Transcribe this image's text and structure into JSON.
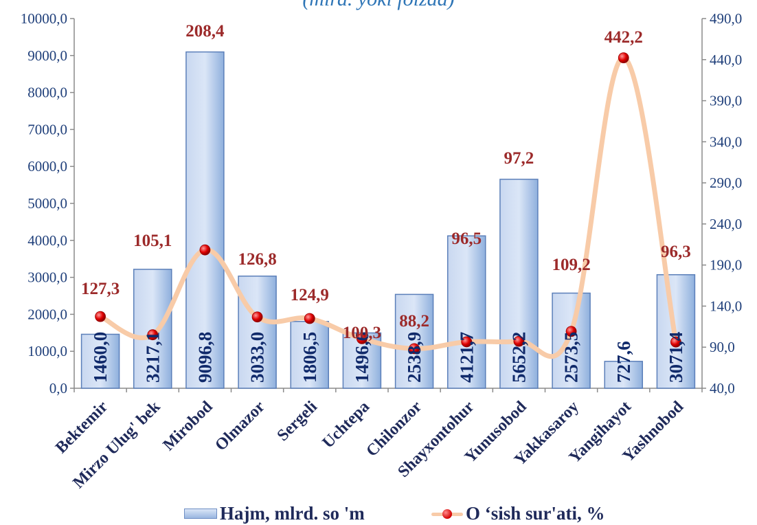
{
  "chart_data": {
    "type": "bar+line",
    "subtitle": "(mlrd. yoki foizda)",
    "categories": [
      "Bektemir",
      "Mirzo Ulug' bek",
      "Mirobod",
      "Olmazor",
      "Sergeli",
      "Uchtepa",
      "Chilonzor",
      "Shayxontohur",
      "Yunusobod",
      "Yakkasaroy",
      "Yangihayot",
      "Yashnobod"
    ],
    "series": [
      {
        "name": "Hajm, mlrd. so 'm",
        "type": "bar",
        "axis": "left",
        "values": [
          1460.0,
          3217.1,
          9096.8,
          3033.0,
          1806.5,
          1496.6,
          2538.9,
          4121.7,
          5652.2,
          2573.5,
          727.6,
          3071.4
        ],
        "labels": [
          "1460,0",
          "3217,1",
          "9096,8",
          "3033,0",
          "1806,5",
          "1496,6",
          "2538,9",
          "4121,7",
          "5652,2",
          "2573,5",
          "727,6",
          "3071,4"
        ]
      },
      {
        "name": "O ‘sish sur'ati, %",
        "type": "line",
        "axis": "right",
        "values": [
          127.3,
          105.1,
          208.4,
          126.8,
          124.9,
          100.3,
          88.2,
          96.5,
          97.2,
          109.2,
          442.2,
          96.3
        ],
        "labels": [
          "127,3",
          "105,1",
          "208,4",
          "126,8",
          "124,9",
          "100,3",
          "88,2",
          "96,5",
          "97,2",
          "109,2",
          "442,2",
          "96,3"
        ]
      }
    ],
    "y_left": {
      "min": 0,
      "max": 10000,
      "ticks": [
        0,
        1000,
        2000,
        3000,
        4000,
        5000,
        6000,
        7000,
        8000,
        9000,
        10000
      ],
      "tick_labels": [
        "0,0",
        "1000,0",
        "2000,0",
        "3000,0",
        "4000,0",
        "5000,0",
        "6000,0",
        "7000,0",
        "8000,0",
        "9000,0",
        "10000,0"
      ]
    },
    "y_right": {
      "min": 40,
      "max": 490,
      "ticks": [
        40,
        90,
        140,
        190,
        240,
        290,
        340,
        390,
        440,
        490
      ],
      "tick_labels": [
        "40,0",
        "90,0",
        "140,0",
        "190,0",
        "240,0",
        "290,0",
        "340,0",
        "390,0",
        "440,0",
        "490,0"
      ]
    },
    "legend": "bottom",
    "grid": false,
    "colors": {
      "bar_fill_top": "#dbe6f7",
      "bar_fill_bottom": "#8fb0dd",
      "bar_stroke": "#5b7fb9",
      "bar_label": "#102a6b",
      "line": "#f8cba8",
      "marker": "#e00000",
      "line_label": "#9c2a2a",
      "axis_text": "#1f3f7a"
    }
  },
  "legend": {
    "bar_label": "Hajm, mlrd. so 'm",
    "line_label": "O ‘sish sur'ati, %"
  }
}
